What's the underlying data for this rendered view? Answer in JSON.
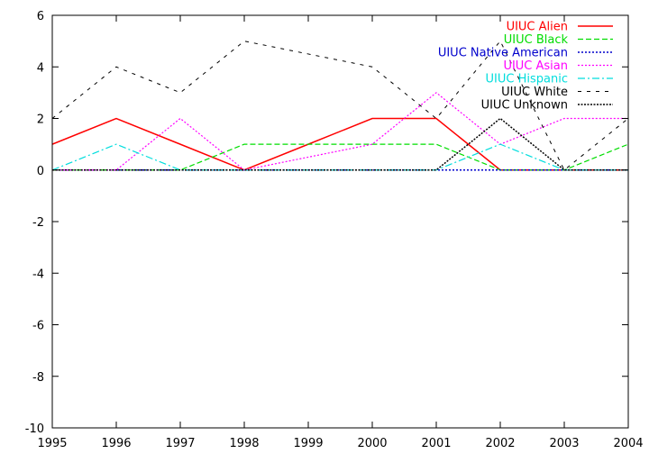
{
  "chart_data": {
    "type": "line",
    "title": "",
    "xlabel": "",
    "ylabel": "",
    "x": [
      1995,
      1996,
      1997,
      1998,
      1999,
      2000,
      2001,
      2002,
      2003,
      2004
    ],
    "xlim": [
      1995,
      2004
    ],
    "ylim": [
      -10,
      6
    ],
    "xticks": [
      "1995",
      "1996",
      "1997",
      "1998",
      "1999",
      "2000",
      "2001",
      "2002",
      "2003",
      "2004"
    ],
    "yticks": [
      "-10",
      "-8",
      "-6",
      "-4",
      "-2",
      "0",
      "2",
      "4",
      "6"
    ],
    "grid": false,
    "legend_position": "top-right",
    "series": [
      {
        "name": "UIUC Alien",
        "color": "#ff0000",
        "dash": "solid",
        "width": 1.5,
        "values": [
          1,
          2,
          1,
          0,
          1,
          2,
          2,
          0,
          0,
          0
        ]
      },
      {
        "name": "UIUC Black",
        "color": "#00dd00",
        "dash": "dashed",
        "width": 1.2,
        "values": [
          0,
          0,
          0,
          1,
          1,
          1,
          1,
          0,
          0,
          1
        ]
      },
      {
        "name": "UIUC Native American",
        "color": "#0000cc",
        "dash": "dotted",
        "width": 1.5,
        "values": [
          0,
          0,
          0,
          0,
          0,
          0,
          0,
          0,
          0,
          0
        ]
      },
      {
        "name": "UIUC Asian",
        "color": "#ff00ff",
        "dash": "dotted",
        "width": 1.2,
        "values": [
          0,
          0,
          2,
          0,
          0.5,
          1,
          3,
          1,
          2,
          2
        ]
      },
      {
        "name": "UIUC Hispanic",
        "color": "#00dddd",
        "dash": "dashdot",
        "width": 1.2,
        "values": [
          0,
          1,
          0,
          0,
          0,
          0,
          0,
          1,
          0,
          0
        ]
      },
      {
        "name": "UIUC White",
        "color": "#000000",
        "dash": "loosedash",
        "width": 1.0,
        "values": [
          2,
          4,
          3,
          5,
          4.5,
          4,
          2,
          5,
          0,
          2
        ]
      },
      {
        "name": "UIUC Unknown",
        "color": "#000000",
        "dash": "densedot",
        "width": 1.5,
        "values": [
          0,
          0,
          0,
          0,
          0,
          0,
          0,
          2,
          0,
          0
        ]
      }
    ]
  }
}
